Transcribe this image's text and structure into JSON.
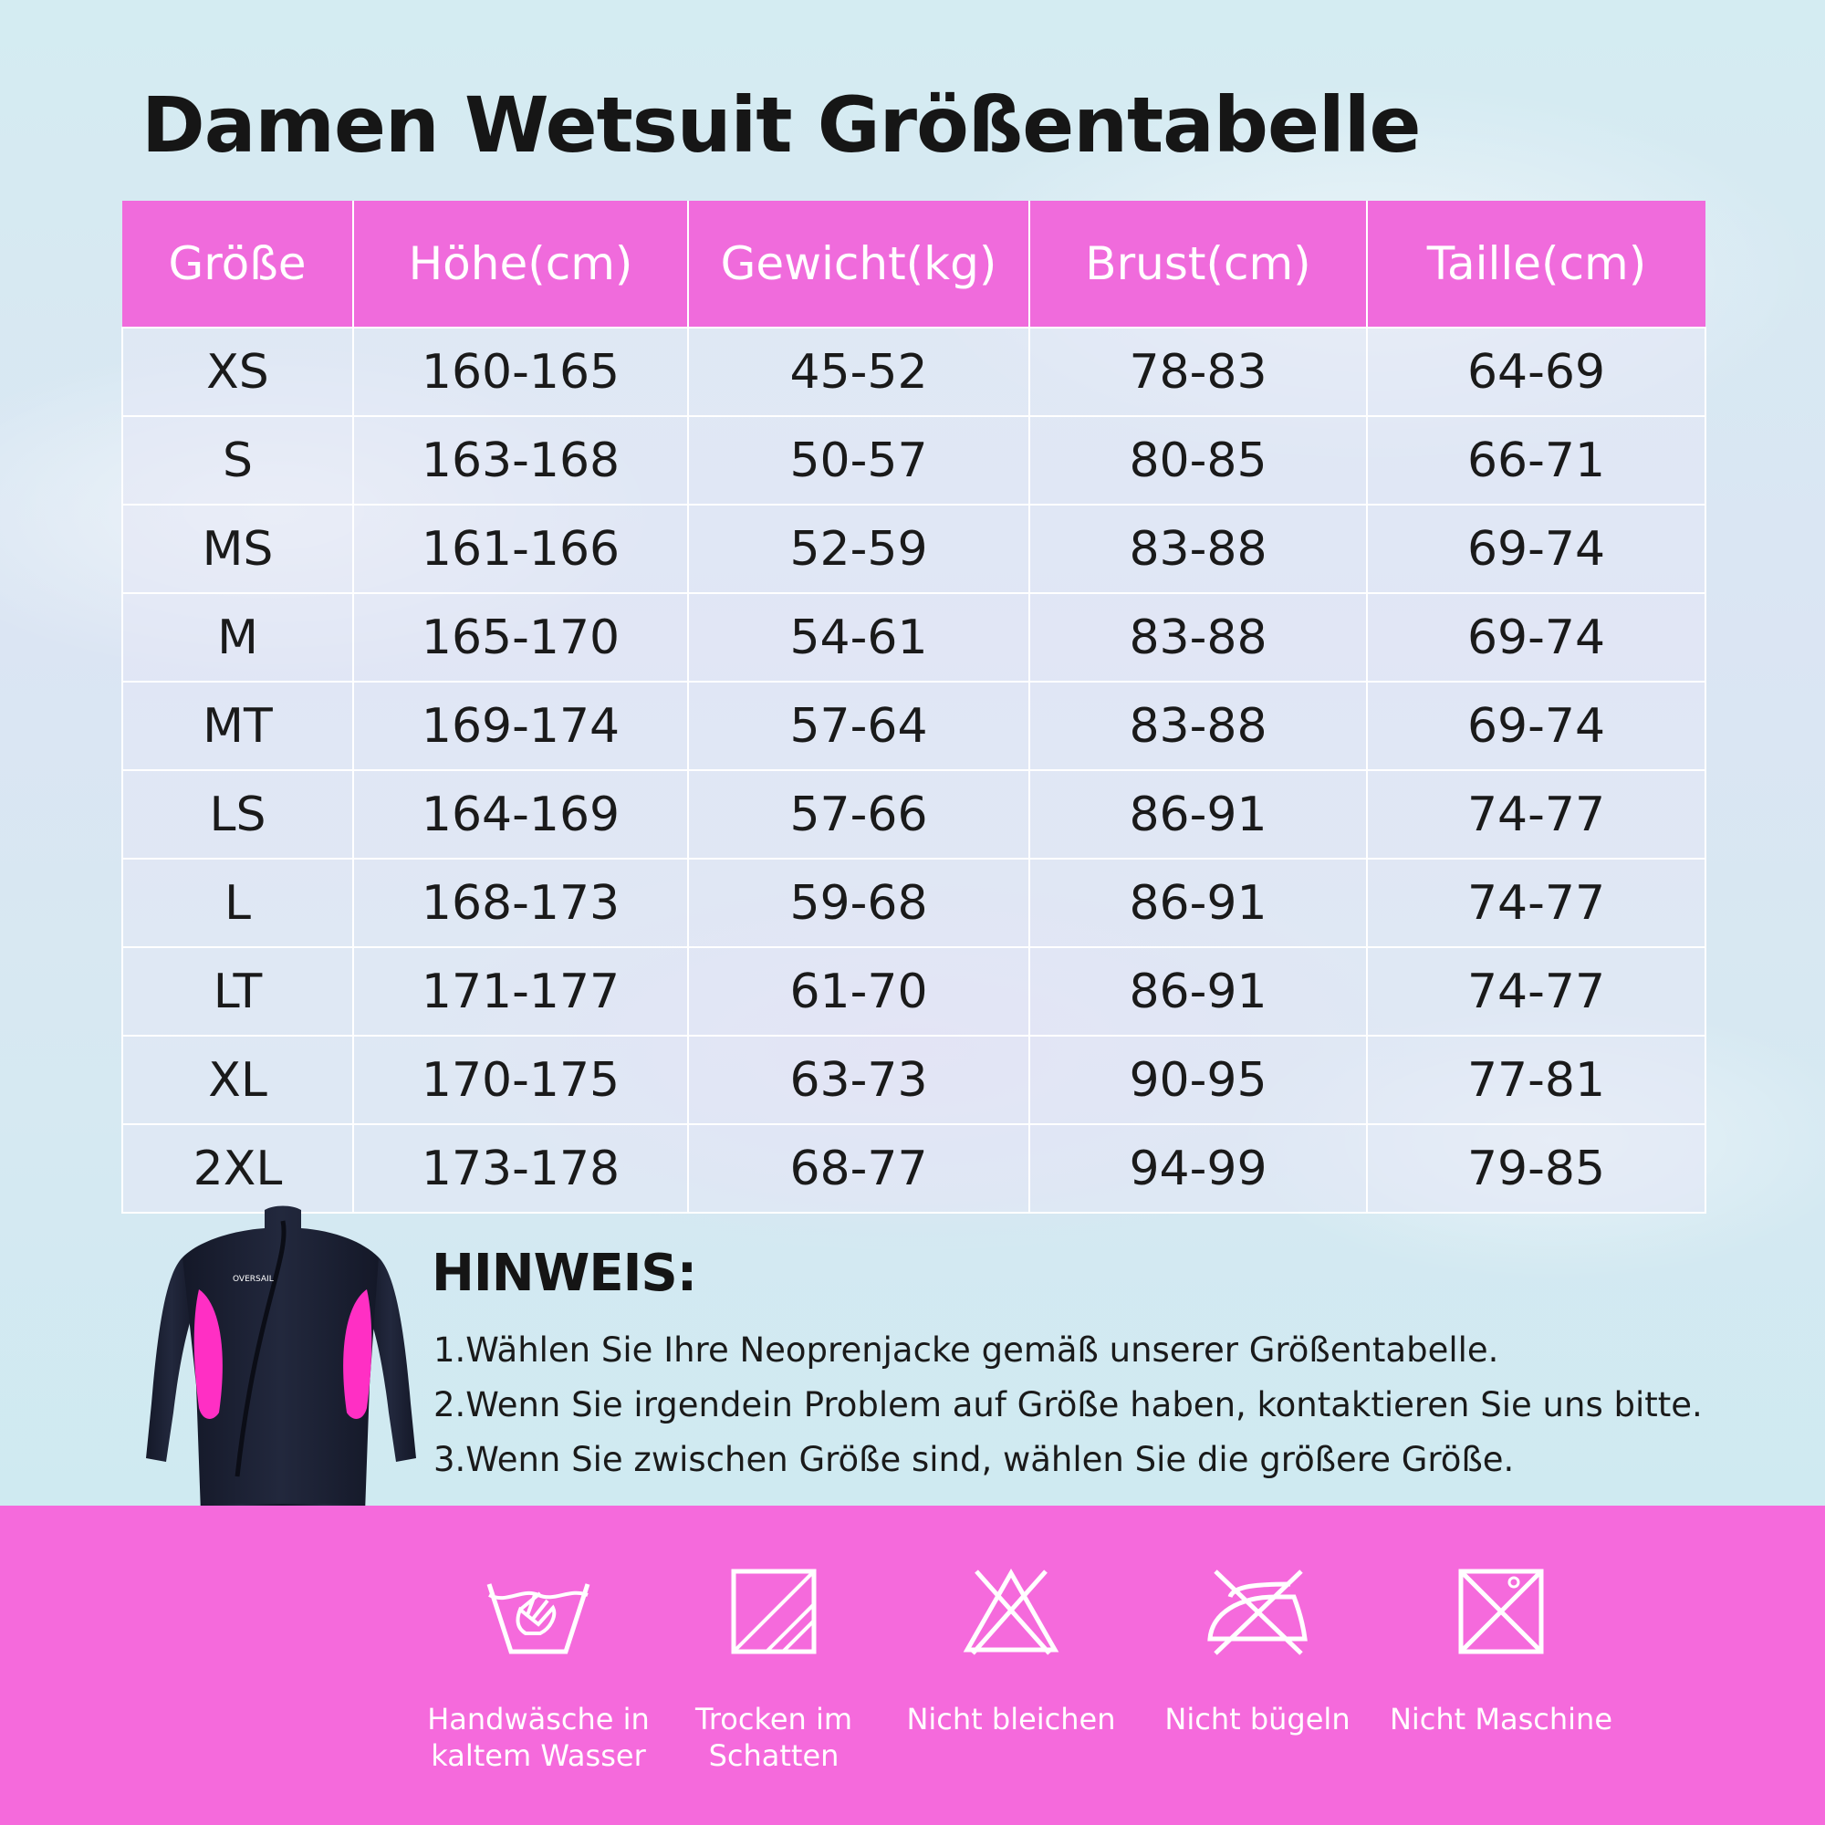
{
  "title": "Damen Wetsuit Größentabelle",
  "table": {
    "headers": [
      "Größe",
      "Höhe(cm)",
      "Gewicht(kg)",
      "Brust(cm)",
      "Taille(cm)"
    ],
    "rows": [
      [
        "XS",
        "160-165",
        "45-52",
        "78-83",
        "64-69"
      ],
      [
        "S",
        "163-168",
        "50-57",
        "80-85",
        "66-71"
      ],
      [
        "MS",
        "161-166",
        "52-59",
        "83-88",
        "69-74"
      ],
      [
        "M",
        "165-170",
        "54-61",
        "83-88",
        "69-74"
      ],
      [
        "MT",
        "169-174",
        "57-64",
        "83-88",
        "69-74"
      ],
      [
        "LS",
        "164-169",
        "57-66",
        "86-91",
        "74-77"
      ],
      [
        "L",
        "168-173",
        "59-68",
        "86-91",
        "74-77"
      ],
      [
        "LT",
        "171-177",
        "61-70",
        "86-91",
        "74-77"
      ],
      [
        "XL",
        "170-175",
        "63-73",
        "90-95",
        "77-81"
      ],
      [
        "2XL",
        "173-178",
        "68-77",
        "94-99",
        "79-85"
      ]
    ]
  },
  "hinweis": {
    "title": "HINWEIS:",
    "notes": [
      "1.Wählen Sie Ihre Neoprenjacke gemäß unserer Größentabelle.",
      "2.Wenn Sie irgendein Problem auf Größe haben, kontaktieren Sie uns bitte.",
      "3.Wenn Sie zwischen Größe sind, wählen Sie die größere Größe."
    ]
  },
  "product": {
    "brand": "OVERSAIL",
    "colors": {
      "body": "#1b2033",
      "accent": "#ff2fc4",
      "knee": "#0d0d12"
    }
  },
  "care": [
    {
      "icon": "hand-wash-icon",
      "line1": "Handwäsche in",
      "line2": "kaltem Wasser"
    },
    {
      "icon": "dry-in-shade-icon",
      "line1": "Trocken im",
      "line2": "Schatten"
    },
    {
      "icon": "no-bleach-icon",
      "line1": "Nicht bleichen",
      "line2": ""
    },
    {
      "icon": "no-iron-icon",
      "line1": "Nicht bügeln",
      "line2": ""
    },
    {
      "icon": "no-machine-wash-icon",
      "line1": "Nicht Maschine",
      "line2": ""
    }
  ],
  "colors": {
    "accent": "#f56adc",
    "header": "#f06bdc",
    "text": "#1a1a1a"
  }
}
